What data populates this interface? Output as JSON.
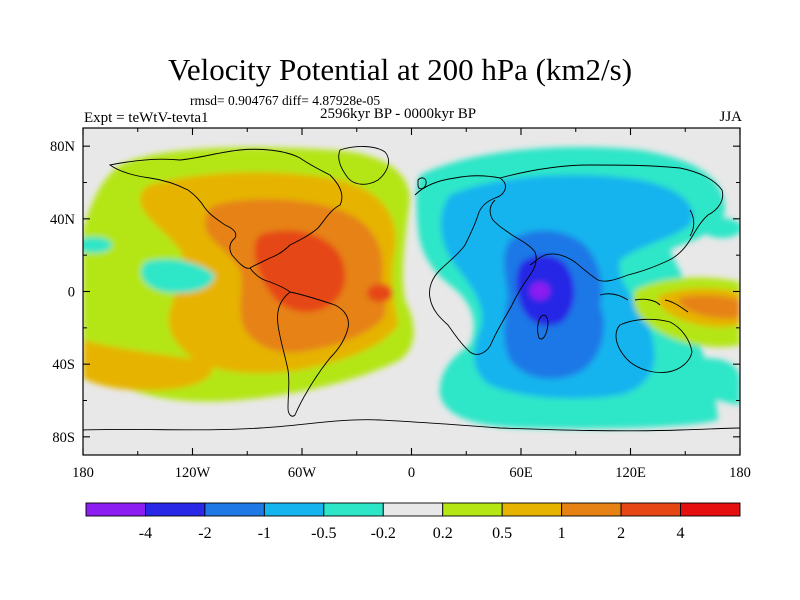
{
  "title": "Velocity Potential at 200 hPa (km2/s)",
  "stats_line": "rmsd= 0.904767 diff= 4.87928e-05",
  "experiment": "Expt = teWtV-tevta1",
  "period": "2596kyr BP - 0000kyr BP",
  "season": "JJA",
  "map": {
    "projection": "cylindrical equidistant",
    "lon_range": [
      -180,
      180
    ],
    "lat_range": [
      -90,
      90
    ],
    "lon_ticks": [
      {
        "value": -180,
        "label": "180"
      },
      {
        "value": -120,
        "label": "120W"
      },
      {
        "value": -60,
        "label": "60W"
      },
      {
        "value": 0,
        "label": "0"
      },
      {
        "value": 60,
        "label": "60E"
      },
      {
        "value": 120,
        "label": "120E"
      },
      {
        "value": 180,
        "label": "180"
      }
    ],
    "lat_ticks": [
      {
        "value": 80,
        "label": "80N"
      },
      {
        "value": 40,
        "label": "40N"
      },
      {
        "value": 0,
        "label": "0"
      },
      {
        "value": -40,
        "label": "40S"
      },
      {
        "value": -80,
        "label": "80S"
      }
    ],
    "field_features": [
      {
        "name": "atlantic-americas-high",
        "lon": -60,
        "lat": 15,
        "value": 4
      },
      {
        "name": "indian-ocean-low",
        "lon": 70,
        "lat": 0,
        "value": -4
      },
      {
        "name": "west-pacific-high",
        "lon": 150,
        "lat": -5,
        "value": 1
      }
    ]
  },
  "colorbar": {
    "labels": [
      "-4",
      "-2",
      "-1",
      "-0.5",
      "-0.2",
      "0.2",
      "0.5",
      "1",
      "2",
      "4"
    ],
    "colors": [
      "#8c1ef2",
      "#2828e6",
      "#1e78e6",
      "#14b4ee",
      "#2de6c8",
      "#e8e8e8",
      "#b4e614",
      "#e6b400",
      "#e68214",
      "#e64614",
      "#e60f0f"
    ]
  }
}
